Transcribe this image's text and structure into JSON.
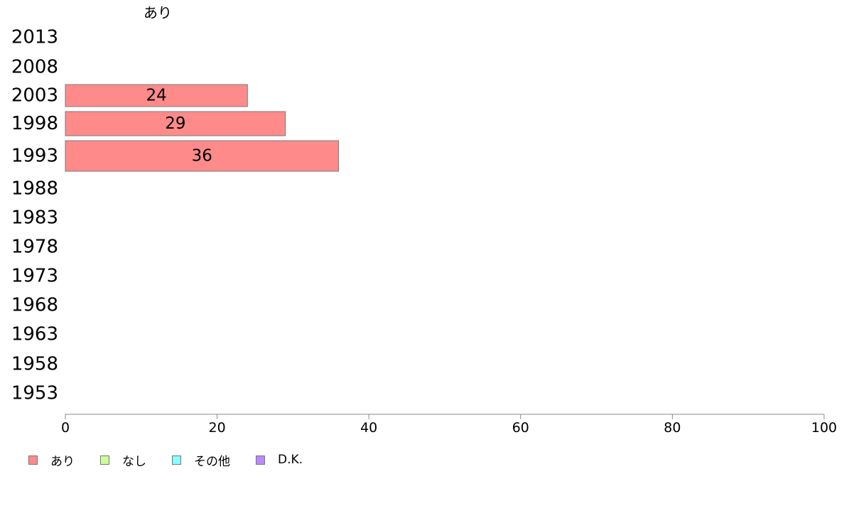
{
  "chart_data": {
    "type": "bar",
    "orientation": "horizontal",
    "stacked": true,
    "series_header": "あり",
    "categories": [
      "2013",
      "2008",
      "2003",
      "1998",
      "1993",
      "1988",
      "1983",
      "1978",
      "1973",
      "1968",
      "1963",
      "1958",
      "1953"
    ],
    "series": [
      {
        "name": "あり",
        "color": "#ff8a8a",
        "values": [
          null,
          null,
          24,
          29,
          36,
          null,
          null,
          null,
          null,
          null,
          null,
          null,
          null
        ]
      },
      {
        "name": "なし",
        "color": "#ccff99",
        "values": [
          null,
          null,
          null,
          null,
          null,
          null,
          null,
          null,
          null,
          null,
          null,
          null,
          null
        ]
      },
      {
        "name": "その他",
        "color": "#88ffff",
        "values": [
          null,
          null,
          null,
          null,
          null,
          null,
          null,
          null,
          null,
          null,
          null,
          null,
          null
        ]
      },
      {
        "name": "D.K.",
        "color": "#bb88ff",
        "values": [
          null,
          null,
          null,
          null,
          null,
          null,
          null,
          null,
          null,
          null,
          null,
          null,
          null
        ]
      }
    ],
    "xlim": [
      0,
      100
    ],
    "xticks": [
      0,
      20,
      40,
      60,
      80,
      100
    ],
    "grid": false,
    "legend_position": "bottom-left"
  }
}
